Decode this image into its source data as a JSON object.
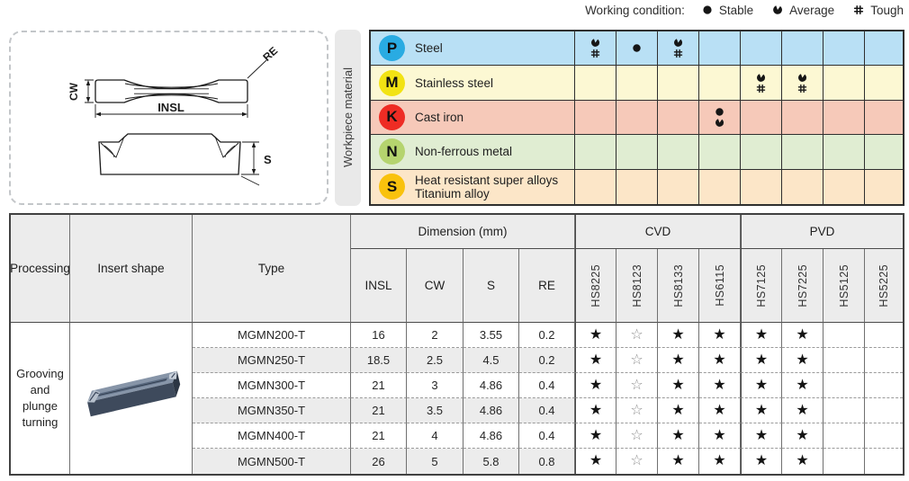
{
  "legend": {
    "title": "Working condition:",
    "items": [
      {
        "icon": "stable",
        "label": "Stable"
      },
      {
        "icon": "average",
        "label": "Average"
      },
      {
        "icon": "tough",
        "label": "Tough"
      }
    ]
  },
  "diagram": {
    "labels": {
      "cw": "CW",
      "insl": "INSL",
      "re": "RE",
      "s": "S"
    }
  },
  "workpiece": {
    "sidebar_label": "Workpiece material",
    "rows": [
      {
        "code": "P",
        "label_lines": [
          "Steel"
        ],
        "circle_color": "#29abe2",
        "row_color": "#b9e0f5",
        "ratings": [
          [
            "average",
            "tough"
          ],
          [
            "stable"
          ],
          [
            "average",
            "tough"
          ],
          [],
          [],
          [],
          [],
          []
        ]
      },
      {
        "code": "M",
        "label_lines": [
          "Stainless steel"
        ],
        "circle_color": "#f2e313",
        "row_color": "#fcf8d3",
        "ratings": [
          [],
          [],
          [],
          [],
          [
            "average",
            "tough"
          ],
          [
            "average",
            "tough"
          ],
          [],
          []
        ]
      },
      {
        "code": "K",
        "label_lines": [
          "Cast iron"
        ],
        "circle_color": "#ee2c24",
        "row_color": "#f6c9b9",
        "ratings": [
          [],
          [],
          [],
          [
            "stable",
            "average"
          ],
          [],
          [],
          [],
          []
        ]
      },
      {
        "code": "N",
        "label_lines": [
          "Non-ferrous metal"
        ],
        "circle_color": "#b5d46e",
        "row_color": "#e0edd2",
        "ratings": [
          [],
          [],
          [],
          [],
          [],
          [],
          [],
          []
        ]
      },
      {
        "code": "S",
        "label_lines": [
          "Heat resistant super alloys",
          "Titanium alloy"
        ],
        "circle_color": "#f9c20d",
        "row_color": "#fce6c8",
        "ratings": [
          [],
          [],
          [],
          [],
          [],
          [],
          [],
          []
        ]
      }
    ]
  },
  "table": {
    "headers": {
      "processing": "Processing",
      "insert_shape": "Insert shape",
      "type": "Type",
      "dimension": "Dimension (mm)",
      "dims": [
        "INSL",
        "CW",
        "S",
        "RE"
      ],
      "cvd": "CVD",
      "pvd": "PVD",
      "grades": [
        "HS8225",
        "HS8123",
        "HS8133",
        "HS6115",
        "HS7125",
        "HS7225",
        "HS5125",
        "HS5225"
      ]
    },
    "processing_label": "Grooving and plunge turning",
    "rows": [
      {
        "type": "MGMN200-T",
        "insl": "16",
        "cw": "2",
        "s": "3.55",
        "re": "0.2",
        "stars": [
          "filled",
          "hollow",
          "filled",
          "filled",
          "filled",
          "filled",
          "",
          ""
        ]
      },
      {
        "type": "MGMN250-T",
        "insl": "18.5",
        "cw": "2.5",
        "s": "4.5",
        "re": "0.2",
        "stars": [
          "filled",
          "hollow",
          "filled",
          "filled",
          "filled",
          "filled",
          "",
          ""
        ]
      },
      {
        "type": "MGMN300-T",
        "insl": "21",
        "cw": "3",
        "s": "4.86",
        "re": "0.4",
        "stars": [
          "filled",
          "hollow",
          "filled",
          "filled",
          "filled",
          "filled",
          "",
          ""
        ]
      },
      {
        "type": "MGMN350-T",
        "insl": "21",
        "cw": "3.5",
        "s": "4.86",
        "re": "0.4",
        "stars": [
          "filled",
          "hollow",
          "filled",
          "filled",
          "filled",
          "filled",
          "",
          ""
        ]
      },
      {
        "type": "MGMN400-T",
        "insl": "21",
        "cw": "4",
        "s": "4.86",
        "re": "0.4",
        "stars": [
          "filled",
          "hollow",
          "filled",
          "filled",
          "filled",
          "filled",
          "",
          ""
        ]
      },
      {
        "type": "MGMN500-T",
        "insl": "26",
        "cw": "5",
        "s": "5.8",
        "re": "0.8",
        "stars": [
          "filled",
          "hollow",
          "filled",
          "filled",
          "filled",
          "filled",
          "",
          ""
        ]
      }
    ]
  },
  "colors": {
    "symbol": "#161616",
    "header_bg": "#ececec",
    "stripe_bg": "#ececec",
    "border_dark": "#2f2f2f"
  }
}
